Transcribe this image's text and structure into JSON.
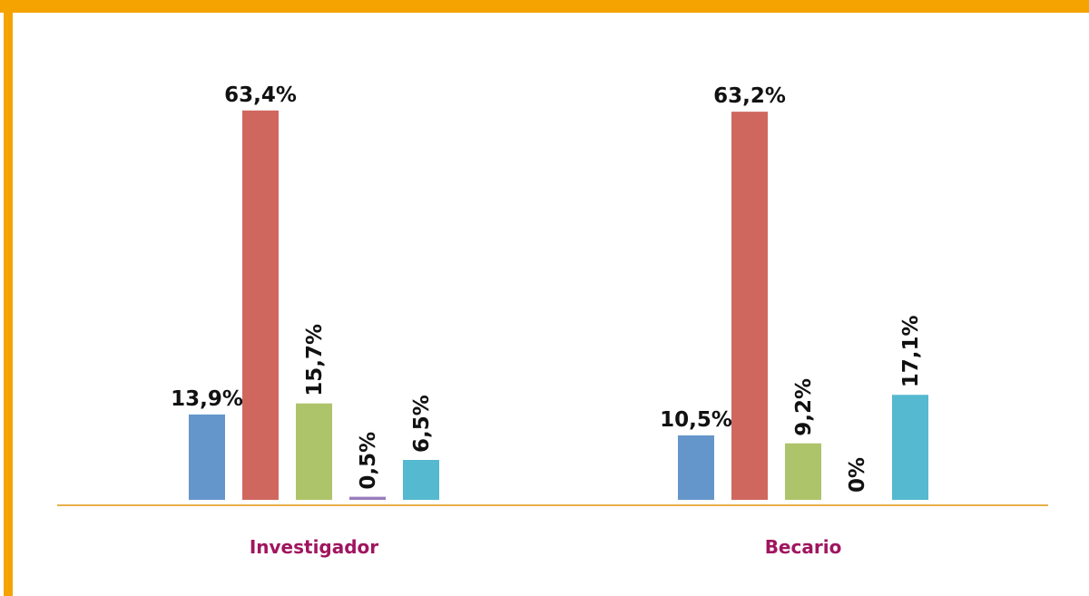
{
  "chart_data": {
    "type": "bar",
    "categories": [
      "Investigador",
      "Becario"
    ],
    "series": [
      {
        "color": "#6596cb",
        "values": [
          13.9,
          10.5
        ],
        "value_labels": [
          "13,9%",
          "10,5%"
        ]
      },
      {
        "color": "#d0675f",
        "values": [
          63.4,
          63.2
        ],
        "value_labels": [
          "63,4%",
          "63,2%"
        ]
      },
      {
        "color": "#adc46a",
        "values": [
          15.7,
          9.2
        ],
        "value_labels": [
          "15,7%",
          "9,2%"
        ]
      },
      {
        "color": "#9a7dbd",
        "values": [
          0.5,
          0
        ],
        "value_labels": [
          "0,5%",
          "0%"
        ]
      },
      {
        "color": "#55b9d0",
        "values": [
          6.5,
          17.1
        ],
        "value_labels": [
          "6,5%",
          "17,1%"
        ]
      }
    ]
  }
}
